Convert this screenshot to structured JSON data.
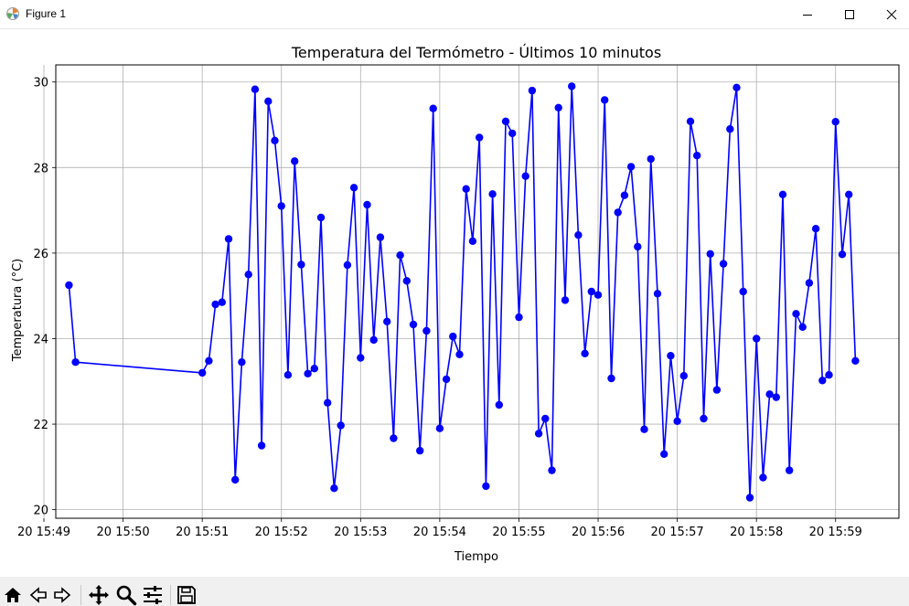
{
  "window": {
    "title": "Figure 1",
    "icons": {
      "app": "matplotlib-icon",
      "minimize": "minimize-icon",
      "maximize": "maximize-icon",
      "close": "close-icon"
    }
  },
  "toolbar": {
    "icons": [
      "home-icon",
      "back-arrow-icon",
      "forward-arrow-icon",
      "pan-move-icon",
      "zoom-magnifier-icon",
      "configure-subplots-icon",
      "save-icon"
    ]
  },
  "colors": {
    "line": "#0000ff",
    "grid": "#b0b0b0"
  },
  "chart_data": {
    "type": "line",
    "title": "Temperatura del Termómetro - Últimos 10 minutos",
    "xlabel": "Tiempo",
    "ylabel": "Temperatura (°C)",
    "xlim": [
      "20 15:49:09",
      "20 15:59:48"
    ],
    "ylim": [
      19.8,
      30.4
    ],
    "grid": true,
    "x_ticks": [
      "20 15:49",
      "20 15:50",
      "20 15:51",
      "20 15:52",
      "20 15:53",
      "20 15:54",
      "20 15:55",
      "20 15:56",
      "20 15:57",
      "20 15:58",
      "20 15:59"
    ],
    "y_ticks": [
      "20",
      "22",
      "24",
      "26",
      "28",
      "30"
    ],
    "series": [
      {
        "name": "",
        "marker": "circle",
        "x": [
          "20 15:49:19",
          "20 15:49:24",
          "20 15:51:00",
          "20 15:51:05",
          "20 15:51:10",
          "20 15:51:15",
          "20 15:51:20",
          "20 15:51:25",
          "20 15:51:30",
          "20 15:51:35",
          "20 15:51:40",
          "20 15:51:45",
          "20 15:51:50",
          "20 15:51:55",
          "20 15:52:00",
          "20 15:52:05",
          "20 15:52:10",
          "20 15:52:15",
          "20 15:52:20",
          "20 15:52:25",
          "20 15:52:30",
          "20 15:52:35",
          "20 15:52:40",
          "20 15:52:45",
          "20 15:52:50",
          "20 15:52:55",
          "20 15:53:00",
          "20 15:53:05",
          "20 15:53:10",
          "20 15:53:15",
          "20 15:53:20",
          "20 15:53:25",
          "20 15:53:30",
          "20 15:53:35",
          "20 15:53:40",
          "20 15:53:45",
          "20 15:53:50",
          "20 15:53:55",
          "20 15:54:00",
          "20 15:54:05",
          "20 15:54:10",
          "20 15:54:15",
          "20 15:54:20",
          "20 15:54:25",
          "20 15:54:30",
          "20 15:54:35",
          "20 15:54:40",
          "20 15:54:45",
          "20 15:54:50",
          "20 15:54:55",
          "20 15:55:00",
          "20 15:55:05",
          "20 15:55:10",
          "20 15:55:15",
          "20 15:55:20",
          "20 15:55:25",
          "20 15:55:30",
          "20 15:55:35",
          "20 15:55:40",
          "20 15:55:45",
          "20 15:55:50",
          "20 15:55:55",
          "20 15:56:00",
          "20 15:56:05",
          "20 15:56:10",
          "20 15:56:15",
          "20 15:56:20",
          "20 15:56:25",
          "20 15:56:30",
          "20 15:56:35",
          "20 15:56:40",
          "20 15:56:45",
          "20 15:56:50",
          "20 15:56:55",
          "20 15:57:00",
          "20 15:57:05",
          "20 15:57:10",
          "20 15:57:15",
          "20 15:57:20",
          "20 15:57:25",
          "20 15:57:30",
          "20 15:57:35",
          "20 15:57:40",
          "20 15:57:45",
          "20 15:57:50",
          "20 15:57:55",
          "20 15:58:00",
          "20 15:58:05",
          "20 15:58:10",
          "20 15:58:15",
          "20 15:58:20",
          "20 15:58:25",
          "20 15:58:30",
          "20 15:58:35",
          "20 15:58:40",
          "20 15:58:45",
          "20 15:58:50",
          "20 15:58:55",
          "20 15:59:00",
          "20 15:59:05",
          "20 15:59:10",
          "20 15:59:15"
        ],
        "y": [
          25.25,
          23.45,
          23.2,
          23.48,
          24.8,
          24.85,
          26.33,
          20.7,
          23.45,
          25.5,
          29.83,
          21.5,
          29.55,
          28.63,
          27.1,
          23.15,
          28.15,
          25.73,
          23.18,
          23.3,
          26.83,
          22.5,
          20.5,
          21.97,
          25.72,
          27.53,
          23.55,
          27.13,
          23.97,
          26.37,
          24.4,
          21.67,
          25.95,
          25.35,
          24.33,
          21.38,
          24.18,
          29.38,
          21.9,
          23.05,
          24.05,
          23.63,
          27.5,
          26.28,
          28.7,
          20.55,
          27.38,
          22.45,
          29.08,
          28.8,
          24.5,
          27.8,
          29.8,
          21.78,
          22.13,
          20.92,
          29.4,
          24.9,
          29.9,
          26.42,
          23.65,
          25.1,
          25.02,
          29.58,
          23.07,
          26.95,
          27.35,
          28.02,
          26.15,
          21.88,
          28.2,
          25.05,
          21.3,
          23.6,
          22.07,
          23.13,
          29.08,
          28.28,
          22.13,
          25.98,
          22.8,
          25.75,
          28.9,
          29.87,
          25.1,
          20.28,
          24.0,
          20.75,
          22.7,
          22.63,
          27.37,
          20.92,
          24.58,
          24.27,
          25.3,
          26.57,
          23.02,
          23.15,
          29.07,
          25.97,
          27.37,
          23.48
        ]
      }
    ]
  }
}
